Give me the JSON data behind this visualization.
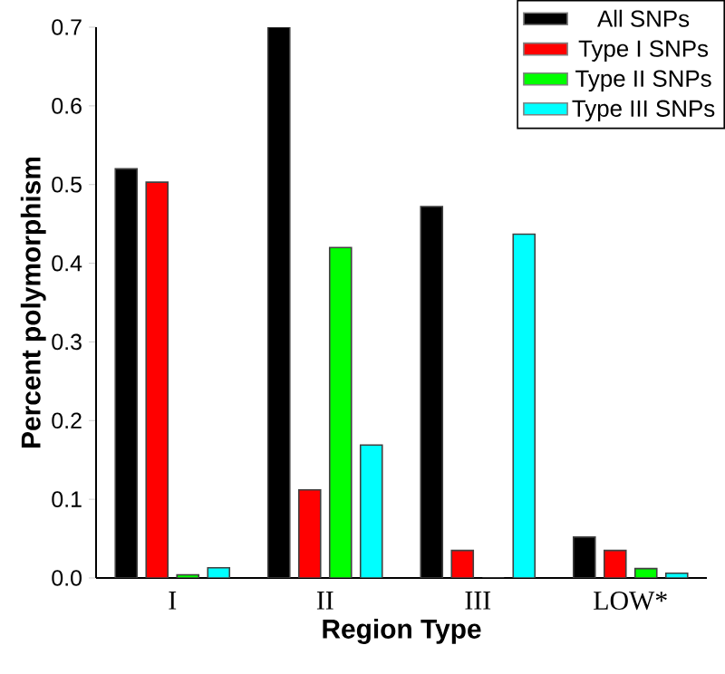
{
  "chart_data": {
    "type": "bar",
    "xlabel": "Region Type",
    "ylabel": "Percent polymorphism",
    "categories": [
      "I",
      "II",
      "III",
      "LOW*"
    ],
    "series": [
      {
        "name": "All SNPs",
        "color": "#000000",
        "values": [
          0.52,
          0.7,
          0.472,
          0.052
        ]
      },
      {
        "name": "Type I SNPs",
        "color": "#ff0000",
        "values": [
          0.503,
          0.112,
          0.035,
          0.035
        ]
      },
      {
        "name": "Type II SNPs",
        "color": "#00ff00",
        "values": [
          0.004,
          0.42,
          0,
          0.012
        ]
      },
      {
        "name": "Type III SNPs",
        "color": "#00ffff",
        "values": [
          0.013,
          0.169,
          0.437,
          0.006
        ]
      }
    ],
    "ylim": [
      0,
      0.7
    ],
    "yticks": [
      {
        "value": 0,
        "label": "0.0"
      },
      0.1,
      0.2,
      0.3,
      0.4,
      0.5,
      0.6,
      0.7
    ],
    "legend": "top right",
    "grid": false
  }
}
